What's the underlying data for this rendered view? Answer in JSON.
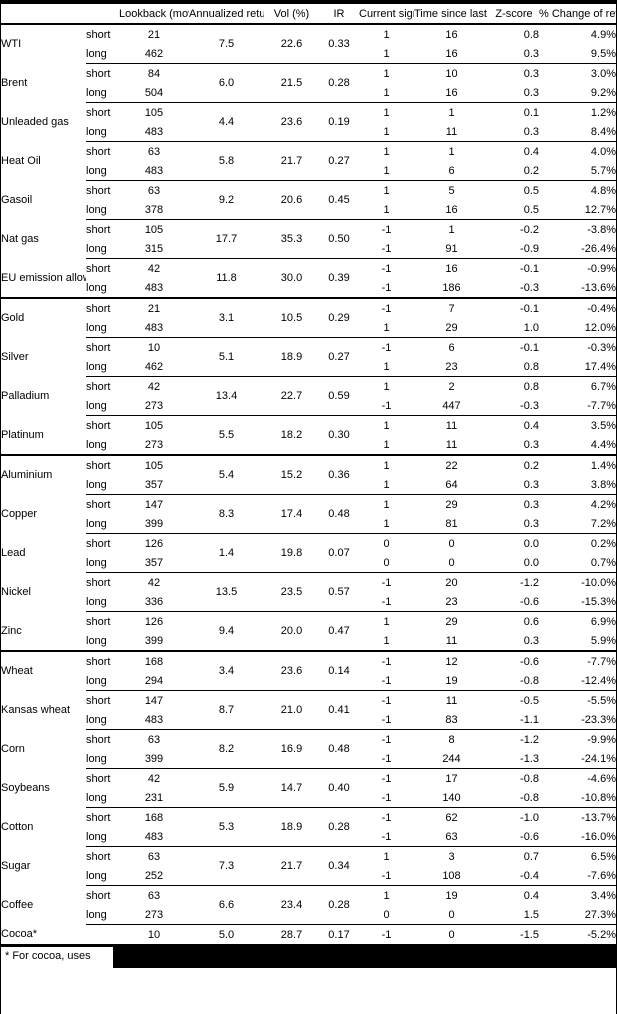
{
  "table": {
    "column_headers": [
      "Lookback (moving avg, days)",
      "Annualized return (%)",
      "Vol (%)",
      "IR",
      "Current signal",
      "Time since last change (days)",
      "Z-score",
      "% Change of return index from its moving average"
    ],
    "groups": [
      {
        "name": "WTI",
        "annualized": "7.5",
        "vol": "22.6",
        "ir": "0.33",
        "section_break": false,
        "entries": [
          {
            "label": "short",
            "lookback": "21",
            "signal": "1",
            "time": "16",
            "zscore": "0.8",
            "pct_change": "4.9%"
          },
          {
            "label": "long",
            "lookback": "462",
            "signal": "1",
            "time": "16",
            "zscore": "0.3",
            "pct_change": "9.5%"
          }
        ]
      },
      {
        "name": "Brent",
        "annualized": "6.0",
        "vol": "21.5",
        "ir": "0.28",
        "section_break": false,
        "entries": [
          {
            "label": "short",
            "lookback": "84",
            "signal": "1",
            "time": "10",
            "zscore": "0.3",
            "pct_change": "3.0%"
          },
          {
            "label": "long",
            "lookback": "504",
            "signal": "1",
            "time": "16",
            "zscore": "0.3",
            "pct_change": "9.2%"
          }
        ]
      },
      {
        "name": "Unleaded gas",
        "annualized": "4.4",
        "vol": "23.6",
        "ir": "0.19",
        "section_break": false,
        "entries": [
          {
            "label": "short",
            "lookback": "105",
            "signal": "1",
            "time": "1",
            "zscore": "0.1",
            "pct_change": "1.2%"
          },
          {
            "label": "long",
            "lookback": "483",
            "signal": "1",
            "time": "11",
            "zscore": "0.3",
            "pct_change": "8.4%"
          }
        ]
      },
      {
        "name": "Heat Oil",
        "annualized": "5.8",
        "vol": "21.7",
        "ir": "0.27",
        "section_break": false,
        "entries": [
          {
            "label": "short",
            "lookback": "63",
            "signal": "1",
            "time": "1",
            "zscore": "0.4",
            "pct_change": "4.0%"
          },
          {
            "label": "long",
            "lookback": "483",
            "signal": "1",
            "time": "6",
            "zscore": "0.2",
            "pct_change": "5.7%"
          }
        ]
      },
      {
        "name": "Gasoil",
        "annualized": "9.2",
        "vol": "20.6",
        "ir": "0.45",
        "section_break": false,
        "entries": [
          {
            "label": "short",
            "lookback": "63",
            "signal": "1",
            "time": "5",
            "zscore": "0.5",
            "pct_change": "4.8%"
          },
          {
            "label": "long",
            "lookback": "378",
            "signal": "1",
            "time": "16",
            "zscore": "0.5",
            "pct_change": "12.7%"
          }
        ]
      },
      {
        "name": "Nat gas",
        "annualized": "17.7",
        "vol": "35.3",
        "ir": "0.50",
        "section_break": false,
        "entries": [
          {
            "label": "short",
            "lookback": "105",
            "signal": "-1",
            "time": "1",
            "zscore": "-0.2",
            "pct_change": "-3.8%"
          },
          {
            "label": "long",
            "lookback": "315",
            "signal": "-1",
            "time": "91",
            "zscore": "-0.9",
            "pct_change": "-26.4%"
          }
        ]
      },
      {
        "name": "EU emission allowances",
        "annualized": "11.8",
        "vol": "30.0",
        "ir": "0.39",
        "section_break": false,
        "entries": [
          {
            "label": "short",
            "lookback": "42",
            "signal": "-1",
            "time": "16",
            "zscore": "-0.1",
            "pct_change": "-0.9%"
          },
          {
            "label": "long",
            "lookback": "483",
            "signal": "-1",
            "time": "186",
            "zscore": "-0.3",
            "pct_change": "-13.6%"
          }
        ]
      },
      {
        "name": "Gold",
        "annualized": "3.1",
        "vol": "10.5",
        "ir": "0.29",
        "section_break": true,
        "entries": [
          {
            "label": "short",
            "lookback": "21",
            "signal": "-1",
            "time": "7",
            "zscore": "-0.1",
            "pct_change": "-0.4%"
          },
          {
            "label": "long",
            "lookback": "483",
            "signal": "1",
            "time": "29",
            "zscore": "1.0",
            "pct_change": "12.0%"
          }
        ]
      },
      {
        "name": "Silver",
        "annualized": "5.1",
        "vol": "18.9",
        "ir": "0.27",
        "section_break": false,
        "entries": [
          {
            "label": "short",
            "lookback": "10",
            "signal": "-1",
            "time": "6",
            "zscore": "-0.1",
            "pct_change": "-0.3%"
          },
          {
            "label": "long",
            "lookback": "462",
            "signal": "1",
            "time": "23",
            "zscore": "0.8",
            "pct_change": "17.4%"
          }
        ]
      },
      {
        "name": "Palladium",
        "annualized": "13.4",
        "vol": "22.7",
        "ir": "0.59",
        "section_break": false,
        "entries": [
          {
            "label": "short",
            "lookback": "42",
            "signal": "1",
            "time": "2",
            "zscore": "0.8",
            "pct_change": "6.7%"
          },
          {
            "label": "long",
            "lookback": "273",
            "signal": "-1",
            "time": "447",
            "zscore": "-0.3",
            "pct_change": "-7.7%"
          }
        ]
      },
      {
        "name": "Platinum",
        "annualized": "5.5",
        "vol": "18.2",
        "ir": "0.30",
        "section_break": false,
        "entries": [
          {
            "label": "short",
            "lookback": "105",
            "signal": "1",
            "time": "11",
            "zscore": "0.4",
            "pct_change": "3.5%"
          },
          {
            "label": "long",
            "lookback": "273",
            "signal": "1",
            "time": "11",
            "zscore": "0.3",
            "pct_change": "4.4%"
          }
        ]
      },
      {
        "name": "Aluminium",
        "annualized": "5.4",
        "vol": "15.2",
        "ir": "0.36",
        "section_break": true,
        "entries": [
          {
            "label": "short",
            "lookback": "105",
            "signal": "1",
            "time": "22",
            "zscore": "0.2",
            "pct_change": "1.4%"
          },
          {
            "label": "long",
            "lookback": "357",
            "signal": "1",
            "time": "64",
            "zscore": "0.3",
            "pct_change": "3.8%"
          }
        ]
      },
      {
        "name": "Copper",
        "annualized": "8.3",
        "vol": "17.4",
        "ir": "0.48",
        "section_break": false,
        "entries": [
          {
            "label": "short",
            "lookback": "147",
            "signal": "1",
            "time": "29",
            "zscore": "0.3",
            "pct_change": "4.2%"
          },
          {
            "label": "long",
            "lookback": "399",
            "signal": "1",
            "time": "81",
            "zscore": "0.3",
            "pct_change": "7.2%"
          }
        ]
      },
      {
        "name": "Lead",
        "annualized": "1.4",
        "vol": "19.8",
        "ir": "0.07",
        "section_break": false,
        "entries": [
          {
            "label": "short",
            "lookback": "126",
            "signal": "0",
            "time": "0",
            "zscore": "0.0",
            "pct_change": "0.2%"
          },
          {
            "label": "long",
            "lookback": "357",
            "signal": "0",
            "time": "0",
            "zscore": "0.0",
            "pct_change": "0.7%"
          }
        ]
      },
      {
        "name": "Nickel",
        "annualized": "13.5",
        "vol": "23.5",
        "ir": "0.57",
        "section_break": false,
        "entries": [
          {
            "label": "short",
            "lookback": "42",
            "signal": "-1",
            "time": "20",
            "zscore": "-1.2",
            "pct_change": "-10.0%"
          },
          {
            "label": "long",
            "lookback": "336",
            "signal": "-1",
            "time": "23",
            "zscore": "-0.6",
            "pct_change": "-15.3%"
          }
        ]
      },
      {
        "name": "Zinc",
        "annualized": "9.4",
        "vol": "20.0",
        "ir": "0.47",
        "section_break": false,
        "entries": [
          {
            "label": "short",
            "lookback": "126",
            "signal": "1",
            "time": "29",
            "zscore": "0.6",
            "pct_change": "6.9%"
          },
          {
            "label": "long",
            "lookback": "399",
            "signal": "1",
            "time": "11",
            "zscore": "0.3",
            "pct_change": "5.9%"
          }
        ]
      },
      {
        "name": "Wheat",
        "annualized": "3.4",
        "vol": "23.6",
        "ir": "0.14",
        "section_break": true,
        "entries": [
          {
            "label": "short",
            "lookback": "168",
            "signal": "-1",
            "time": "12",
            "zscore": "-0.6",
            "pct_change": "-7.7%"
          },
          {
            "label": "long",
            "lookback": "294",
            "signal": "-1",
            "time": "19",
            "zscore": "-0.8",
            "pct_change": "-12.4%"
          }
        ]
      },
      {
        "name": "Kansas wheat",
        "annualized": "8.7",
        "vol": "21.0",
        "ir": "0.41",
        "section_break": false,
        "entries": [
          {
            "label": "short",
            "lookback": "147",
            "signal": "-1",
            "time": "11",
            "zscore": "-0.5",
            "pct_change": "-5.5%"
          },
          {
            "label": "long",
            "lookback": "483",
            "signal": "-1",
            "time": "83",
            "zscore": "-1.1",
            "pct_change": "-23.3%"
          }
        ]
      },
      {
        "name": "Corn",
        "annualized": "8.2",
        "vol": "16.9",
        "ir": "0.48",
        "section_break": false,
        "entries": [
          {
            "label": "short",
            "lookback": "63",
            "signal": "-1",
            "time": "8",
            "zscore": "-1.2",
            "pct_change": "-9.9%"
          },
          {
            "label": "long",
            "lookback": "399",
            "signal": "-1",
            "time": "244",
            "zscore": "-1.3",
            "pct_change": "-24.1%"
          }
        ]
      },
      {
        "name": "Soybeans",
        "annualized": "5.9",
        "vol": "14.7",
        "ir": "0.40",
        "section_break": false,
        "entries": [
          {
            "label": "short",
            "lookback": "42",
            "signal": "-1",
            "time": "17",
            "zscore": "-0.8",
            "pct_change": "-4.6%"
          },
          {
            "label": "long",
            "lookback": "231",
            "signal": "-1",
            "time": "140",
            "zscore": "-0.8",
            "pct_change": "-10.8%"
          }
        ]
      },
      {
        "name": "Cotton",
        "annualized": "5.3",
        "vol": "18.9",
        "ir": "0.28",
        "section_break": false,
        "entries": [
          {
            "label": "short",
            "lookback": "168",
            "signal": "-1",
            "time": "62",
            "zscore": "-1.0",
            "pct_change": "-13.7%"
          },
          {
            "label": "long",
            "lookback": "483",
            "signal": "-1",
            "time": "63",
            "zscore": "-0.6",
            "pct_change": "-16.0%"
          }
        ]
      },
      {
        "name": "Sugar",
        "annualized": "7.3",
        "vol": "21.7",
        "ir": "0.34",
        "section_break": false,
        "entries": [
          {
            "label": "short",
            "lookback": "63",
            "signal": "1",
            "time": "3",
            "zscore": "0.7",
            "pct_change": "6.5%"
          },
          {
            "label": "long",
            "lookback": "252",
            "signal": "-1",
            "time": "108",
            "zscore": "-0.4",
            "pct_change": "-7.6%"
          }
        ]
      },
      {
        "name": "Coffee",
        "annualized": "6.6",
        "vol": "23.4",
        "ir": "0.28",
        "section_break": false,
        "entries": [
          {
            "label": "short",
            "lookback": "63",
            "signal": "1",
            "time": "19",
            "zscore": "0.4",
            "pct_change": "3.4%"
          },
          {
            "label": "long",
            "lookback": "273",
            "signal": "0",
            "time": "0",
            "zscore": "1.5",
            "pct_change": "27.3%"
          }
        ]
      },
      {
        "name": "Cocoa*",
        "annualized": "5.0",
        "vol": "28.7",
        "ir": "0.17",
        "section_break": false,
        "entries": [
          {
            "label": "",
            "lookback": "10",
            "signal": "-1",
            "time": "0",
            "zscore": "-1.5",
            "pct_change": "-5.2%"
          }
        ]
      }
    ]
  },
  "footnote": {
    "text": "* For cocoa, uses ",
    "redacted": true
  },
  "colors": {
    "text": "#000000",
    "background": "#ffffff",
    "border": "#000000",
    "redaction": "#000000"
  }
}
